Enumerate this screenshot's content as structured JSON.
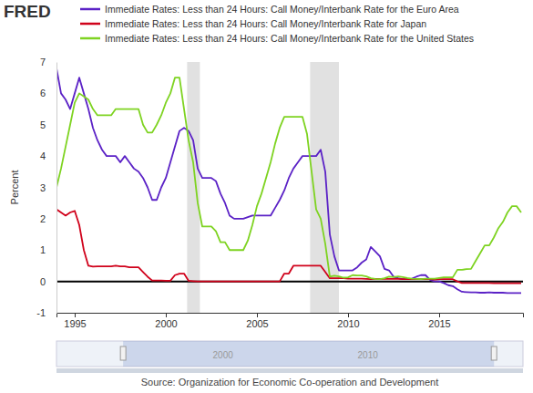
{
  "chart_data": {
    "type": "line",
    "logo": "FRED",
    "y_label": "Percent",
    "source": "Source: Organization for Economic Co-operation and Development",
    "xlim": [
      1994,
      2019.6
    ],
    "xticks": [
      1995,
      2000,
      2005,
      2010,
      2015
    ],
    "ylim": [
      -1,
      7
    ],
    "yticks": [
      -1,
      0,
      1,
      2,
      3,
      4,
      5,
      6,
      7
    ],
    "grid": false,
    "legend": "top-left",
    "reference_line": 0,
    "recessions": [
      [
        2001.17,
        2001.87
      ],
      [
        2007.92,
        2009.5
      ]
    ],
    "navigator": {
      "xlim": [
        1989.4,
        2021.6
      ],
      "xticks": [
        2000,
        2010
      ]
    },
    "x": [
      1994,
      1994.25,
      1994.5,
      1994.75,
      1995,
      1995.25,
      1995.5,
      1995.75,
      1996,
      1996.25,
      1996.5,
      1996.75,
      1997,
      1997.25,
      1997.5,
      1997.75,
      1998,
      1998.25,
      1998.5,
      1998.75,
      1999,
      1999.25,
      1999.5,
      1999.75,
      2000,
      2000.25,
      2000.5,
      2000.75,
      2001,
      2001.25,
      2001.5,
      2001.75,
      2002,
      2002.25,
      2002.5,
      2002.75,
      2003,
      2003.25,
      2003.5,
      2003.75,
      2004,
      2004.25,
      2004.5,
      2004.75,
      2005,
      2005.25,
      2005.5,
      2005.75,
      2006,
      2006.25,
      2006.5,
      2006.75,
      2007,
      2007.25,
      2007.5,
      2007.75,
      2008,
      2008.25,
      2008.5,
      2008.75,
      2009,
      2009.25,
      2009.5,
      2009.75,
      2010,
      2010.25,
      2010.5,
      2010.75,
      2011,
      2011.25,
      2011.5,
      2011.75,
      2012,
      2012.25,
      2012.5,
      2012.75,
      2013,
      2013.25,
      2013.5,
      2013.75,
      2014,
      2014.25,
      2014.5,
      2014.75,
      2015,
      2015.25,
      2015.5,
      2015.75,
      2016,
      2016.25,
      2016.5,
      2016.75,
      2017,
      2017.25,
      2017.5,
      2017.75,
      2018,
      2018.25,
      2018.5,
      2018.75,
      2019,
      2019.25,
      2019.5
    ],
    "series": [
      {
        "name": "Immediate Rates: Less than 24 Hours: Call Money/Interbank Rate for the Euro Area",
        "color": "#5b22c6",
        "values": [
          6.8,
          6.0,
          5.8,
          5.5,
          6.0,
          6.5,
          6.0,
          5.5,
          4.9,
          4.5,
          4.2,
          4.0,
          4.0,
          4.0,
          3.8,
          4.0,
          3.8,
          3.6,
          3.5,
          3.3,
          3.0,
          2.6,
          2.6,
          3.0,
          3.3,
          3.8,
          4.3,
          4.8,
          4.9,
          4.8,
          4.5,
          3.6,
          3.3,
          3.3,
          3.3,
          3.2,
          2.8,
          2.5,
          2.1,
          2.0,
          2.0,
          2.0,
          2.05,
          2.1,
          2.1,
          2.1,
          2.1,
          2.1,
          2.35,
          2.6,
          2.9,
          3.3,
          3.6,
          3.8,
          4.0,
          4.0,
          4.0,
          4.0,
          4.2,
          3.5,
          1.5,
          0.8,
          0.35,
          0.35,
          0.35,
          0.35,
          0.45,
          0.6,
          0.7,
          1.1,
          0.95,
          0.8,
          0.4,
          0.35,
          0.15,
          0.1,
          0.07,
          0.08,
          0.09,
          0.15,
          0.2,
          0.2,
          0.05,
          0.0,
          0.0,
          -0.05,
          -0.12,
          -0.15,
          -0.25,
          -0.33,
          -0.34,
          -0.35,
          -0.35,
          -0.36,
          -0.36,
          -0.35,
          -0.36,
          -0.36,
          -0.36,
          -0.37,
          -0.37,
          -0.37,
          -0.37
        ]
      },
      {
        "name": "Immediate Rates: Less than 24 Hours: Call Money/Interbank Rate for Japan",
        "color": "#d0021b",
        "values": [
          2.3,
          2.2,
          2.1,
          2.2,
          2.25,
          1.8,
          1.0,
          0.5,
          0.47,
          0.48,
          0.48,
          0.48,
          0.48,
          0.5,
          0.48,
          0.48,
          0.45,
          0.45,
          0.45,
          0.3,
          0.15,
          0.03,
          0.03,
          0.03,
          0.02,
          0.02,
          0.2,
          0.25,
          0.25,
          0.02,
          0.01,
          0.001,
          0.001,
          0.001,
          0.001,
          0.001,
          0.001,
          0.001,
          0.001,
          0.001,
          0.001,
          0.001,
          0.001,
          0.001,
          0.001,
          0.001,
          0.001,
          0.001,
          0.001,
          0.001,
          0.25,
          0.25,
          0.5,
          0.5,
          0.5,
          0.5,
          0.5,
          0.5,
          0.5,
          0.3,
          0.1,
          0.1,
          0.1,
          0.1,
          0.09,
          0.09,
          0.09,
          0.09,
          0.08,
          0.07,
          0.08,
          0.08,
          0.08,
          0.08,
          0.08,
          0.08,
          0.07,
          0.07,
          0.07,
          0.07,
          0.07,
          0.07,
          0.07,
          0.06,
          0.07,
          0.07,
          0.07,
          0.07,
          0.0,
          -0.05,
          -0.05,
          -0.05,
          -0.05,
          -0.05,
          -0.05,
          -0.05,
          -0.06,
          -0.06,
          -0.06,
          -0.06,
          -0.06,
          -0.06,
          -0.06
        ]
      },
      {
        "name": "Immediate Rates: Less than 24 Hours: Call Money/Interbank Rate for the United States",
        "color": "#7ed321",
        "values": [
          3.0,
          3.6,
          4.3,
          5.0,
          5.7,
          6.0,
          5.9,
          5.8,
          5.5,
          5.3,
          5.3,
          5.3,
          5.3,
          5.5,
          5.5,
          5.5,
          5.5,
          5.5,
          5.5,
          5.0,
          4.75,
          4.75,
          5.0,
          5.3,
          5.7,
          6.0,
          6.5,
          6.5,
          5.5,
          4.5,
          3.8,
          2.5,
          1.75,
          1.75,
          1.75,
          1.6,
          1.25,
          1.25,
          1.0,
          1.0,
          1.0,
          1.0,
          1.3,
          1.8,
          2.4,
          2.8,
          3.3,
          3.8,
          4.4,
          4.9,
          5.25,
          5.25,
          5.25,
          5.25,
          5.25,
          4.7,
          3.5,
          2.3,
          2.0,
          1.2,
          0.15,
          0.18,
          0.16,
          0.12,
          0.13,
          0.2,
          0.19,
          0.19,
          0.16,
          0.1,
          0.08,
          0.07,
          0.1,
          0.15,
          0.14,
          0.16,
          0.14,
          0.11,
          0.09,
          0.08,
          0.07,
          0.09,
          0.09,
          0.09,
          0.11,
          0.13,
          0.13,
          0.13,
          0.37,
          0.37,
          0.39,
          0.4,
          0.65,
          0.9,
          1.15,
          1.15,
          1.4,
          1.7,
          1.9,
          2.2,
          2.4,
          2.4,
          2.2
        ]
      }
    ]
  }
}
